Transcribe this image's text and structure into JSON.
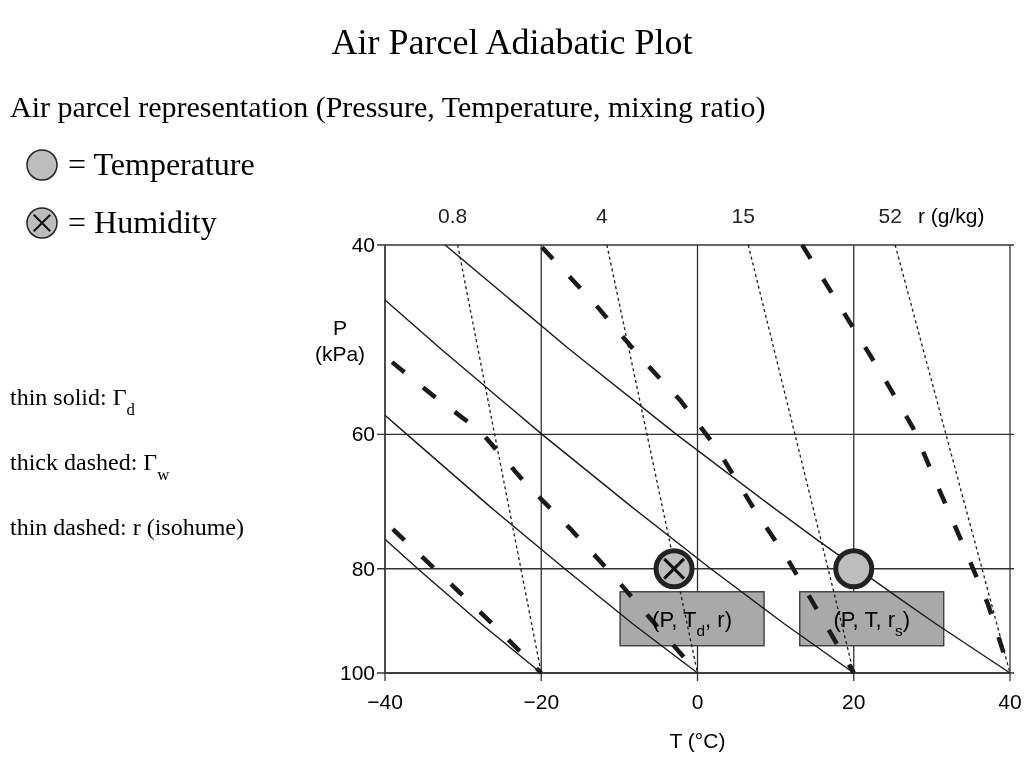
{
  "chart_data": {
    "type": "line",
    "title": "Air Parcel Adiabatic Plot",
    "subtitle": "Air parcel representation (Pressure, Temperature, mixing ratio)",
    "xlabel": "T (°C)",
    "ylabel": "P (kPa)",
    "xlim": [
      -40,
      40
    ],
    "xticks": [
      -40,
      -20,
      0,
      20,
      40
    ],
    "ylim": [
      100,
      40
    ],
    "yticks": [
      40,
      60,
      80,
      100
    ],
    "log": "y",
    "grid": true,
    "legend": "top left",
    "series": [
      {
        "line_style": "solid",
        "color": "#1a1a1a",
        "x": [
          -32.3,
          -16.4,
          -2.7,
          9.5,
          15.1,
          25.6,
          30.5,
          40
        ],
        "values": [
          40,
          50,
          60,
          70,
          75,
          85,
          90,
          100
        ]
      },
      {
        "line_style": "solid",
        "color": "#1a1a1a",
        "x": [
          -40,
          -32.8,
          -19.9,
          -8.5,
          1.7,
          11.1,
          20
        ],
        "values": [
          45,
          50,
          60,
          70,
          80,
          90,
          100
        ]
      },
      {
        "line_style": "solid",
        "color": "#1a1a1a",
        "x": [
          -40,
          -37.2,
          -26.6,
          -17.0,
          -8.3,
          0
        ],
        "values": [
          57.6,
          60,
          70,
          80,
          90,
          100
        ]
      },
      {
        "line_style": "solid",
        "color": "#1a1a1a",
        "x": [
          -40,
          -35.8,
          -27.7,
          -20
        ],
        "values": [
          75.1,
          80,
          90,
          100
        ]
      },
      {
        "line_style": "dashed",
        "color": "#1a1a1a",
        "x": [
          -39.1,
          -34.0,
          -27.8,
          -22.1,
          -16.3,
          -10.9,
          0
        ],
        "values": [
          51.4,
          55.1,
          59.6,
          66.5,
          73.4,
          81,
          100
        ]
      },
      {
        "line_style": "dashed",
        "color": "#1a1a1a",
        "x": [
          -19.9,
          -13.1,
          -7.6,
          -2.1,
          2.6,
          7.2,
          11.6,
          20
        ],
        "values": [
          40.2,
          45.4,
          50.6,
          55.9,
          62,
          70.3,
          78.5,
          100
        ]
      },
      {
        "line_style": "dashed",
        "color": "#1a1a1a",
        "x": [
          13.4,
          19.5,
          23.9,
          27.6,
          31.0,
          34.2,
          37.2,
          40
        ],
        "values": [
          40,
          47.2,
          53.2,
          59.2,
          67.7,
          76.6,
          86.4,
          100
        ]
      },
      {
        "line_style": "dashed",
        "color": "#1a1a1a",
        "x": [
          -39.0,
          -31.7,
          -25.9,
          -20
        ],
        "values": [
          73.5,
          82.5,
          90.5,
          100
        ]
      },
      {
        "line_style": "dotted",
        "name": "0.8",
        "color": "#1a1a1a",
        "x": [
          -30.7,
          -20
        ],
        "values": [
          40,
          100
        ]
      },
      {
        "line_style": "dotted",
        "name": "4",
        "color": "#1a1a1a",
        "x": [
          -11.6,
          0
        ],
        "values": [
          40,
          100
        ]
      },
      {
        "line_style": "dotted",
        "name": "15",
        "color": "#1a1a1a",
        "x": [
          6.5,
          20
        ],
        "values": [
          40,
          100
        ]
      },
      {
        "line_style": "dotted",
        "name": "52",
        "color": "#1a1a1a",
        "x": [
          25.3,
          40
        ],
        "values": [
          40,
          100
        ]
      },
      {
        "type": "scatter",
        "name": "= Temperature",
        "marker": "circle",
        "color": "#bdbdbd",
        "x": [
          20
        ],
        "values": [
          80
        ]
      },
      {
        "type": "scatter",
        "name": "= Humidity",
        "marker": "circle",
        "color": "#bdbdbd",
        "x": [
          -3
        ],
        "values": [
          80
        ]
      }
    ],
    "annotations": [
      {
        "text": "(P, T$_{d}$, r)",
        "x": -3,
        "y": 80
      },
      {
        "text": "(P, T, r$_{s}$)",
        "x": 20,
        "y": 80
      },
      "r (g/kg)",
      "thin solid: Γ$_{d}$",
      "thick dashed: Γ$_{w}$",
      "thin dashed: r (isohume)"
    ]
  }
}
